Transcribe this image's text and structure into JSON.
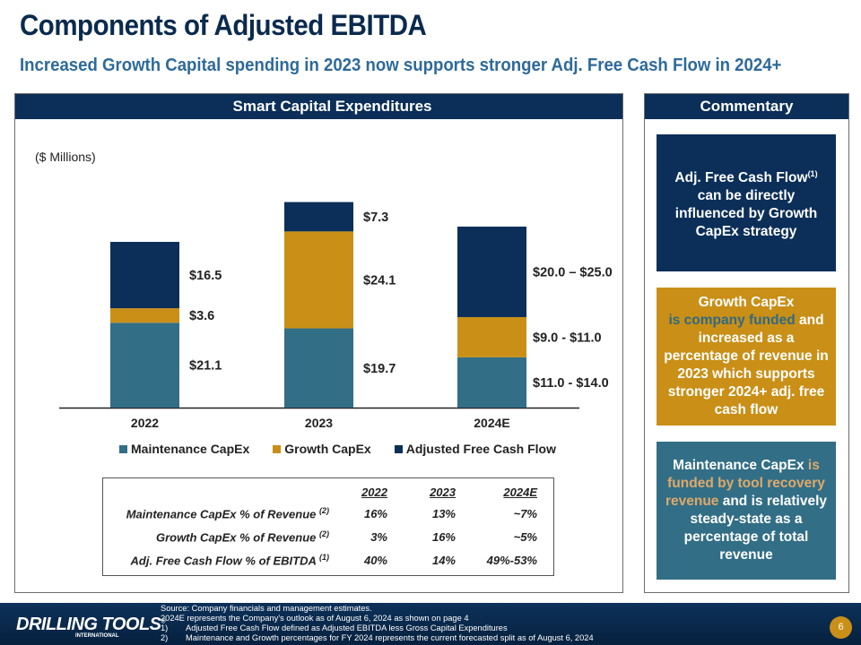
{
  "title": "Components of Adjusted EBITDA",
  "subtitle": "Increased Growth Capital spending in 2023 now supports stronger Adj. Free Cash Flow in 2024+",
  "left_panel": {
    "header": "Smart Capital Expenditures",
    "units": "($ Millions)"
  },
  "chart_data": {
    "type": "bar",
    "stacked": true,
    "title": "Smart Capital Expenditures",
    "ylabel": "($ Millions)",
    "xlabel": "",
    "categories": [
      "2022",
      "2023",
      "2024E"
    ],
    "series": [
      {
        "name": "Maintenance CapEx",
        "color": "#326e86",
        "values": [
          21.1,
          19.7,
          12.5
        ],
        "labels": [
          "$21.1",
          "$19.7",
          "$11.0 - $14.0"
        ]
      },
      {
        "name": "Growth CapEx",
        "color": "#c98f17",
        "values": [
          3.6,
          24.1,
          10.0
        ],
        "labels": [
          "$3.6",
          "$24.1",
          "$9.0 - $11.0"
        ]
      },
      {
        "name": "Adjusted Free Cash Flow",
        "color": "#0b2f58",
        "values": [
          16.5,
          7.3,
          22.5
        ],
        "labels": [
          "$16.5",
          "$7.3",
          "$20.0 – $25.0"
        ]
      }
    ],
    "ylim": [
      0,
      60
    ],
    "grid": false,
    "legend": "bottom"
  },
  "metrics_table": {
    "columns": [
      "2022",
      "2023",
      "2024E"
    ],
    "rows": [
      {
        "label": "Maintenance CapEx % of Revenue",
        "note": "(2)",
        "values": [
          "16%",
          "13%",
          "~7%"
        ]
      },
      {
        "label": "Growth CapEx % of Revenue",
        "note": "(2)",
        "values": [
          "3%",
          "16%",
          "~5%"
        ]
      },
      {
        "label": "Adj. Free Cash Flow % of EBITDA",
        "note": "(1)",
        "values": [
          "40%",
          "14%",
          "49%-53%"
        ]
      }
    ]
  },
  "right_panel": {
    "header": "Commentary",
    "box1": {
      "pre": "Adj. Free Cash Flow",
      "sup": "(1)",
      "post": "can be directly influenced by Growth CapEx strategy"
    },
    "box2": {
      "pre": "Growth CapEx",
      "highlight": "is company funded",
      "post": "and increased as a percentage of revenue in 2023 which supports stronger 2024+ adj. free cash flow"
    },
    "box3": {
      "pre": "Maintenance CapEx",
      "highlight": "is funded by tool recovery revenue",
      "post": "and is relatively steady-state as a percentage of total revenue"
    }
  },
  "footer": {
    "logo_main": "DRILLING TOOLS",
    "logo_reg": "®",
    "logo_sub": "INTERNATIONAL",
    "source": "Source: Company financials and management estimates.",
    "outlook": "2024E represents the Company’s outlook as of August 6, 2024 as shown on page 4",
    "notes": [
      {
        "num": "1)",
        "text": "Adjusted Free Cash Flow defined as Adjusted EBITDA less Gross Capital Expenditures"
      },
      {
        "num": "2)",
        "text": "Maintenance and Growth percentages for FY 2024 represents the current forecasted split as of August 6, 2024"
      }
    ],
    "page_number": "6"
  }
}
